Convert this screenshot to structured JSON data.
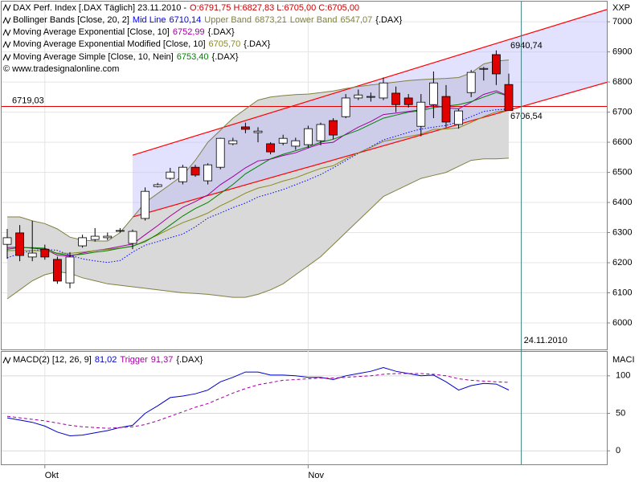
{
  "chart_data": {
    "type": "candlestick",
    "header": {
      "title": "DAX Perf. Index [.DAX  Täglich] 23.11.2010 -",
      "ohlc": "O:6791,75 H:6827,83 L:6705,00 C:6705,00",
      "ohlc_color": "#cc0000"
    },
    "copyright": "© www.tradesignalonline.com",
    "axis_label": "XXP",
    "categories": [
      null,
      null,
      null,
      "Okt",
      null,
      null,
      null,
      null,
      null,
      null,
      null,
      null,
      null,
      null,
      null,
      null,
      null,
      null,
      null,
      null,
      null,
      null,
      null,
      null,
      "Nov",
      null,
      null,
      null,
      null,
      null,
      null,
      null,
      null,
      null,
      null,
      null,
      null,
      null,
      null,
      null,
      null
    ],
    "ylim": [
      5912,
      7067
    ],
    "yticks": [
      6000,
      6100,
      6200,
      6300,
      6400,
      6500,
      6600,
      6700,
      6800,
      6900,
      7000
    ],
    "grid": true,
    "candles": {
      "up_color": "#ffffff",
      "down_color": "#e00000",
      "open": [
        6261,
        6299,
        6219,
        6245,
        6211,
        6133,
        6256,
        6277,
        6283,
        6305,
        6264,
        6347,
        6453,
        6480,
        6469,
        6517,
        6472,
        6517,
        6595,
        6651,
        6632,
        6595,
        6597,
        6587,
        6592,
        6605,
        6672,
        6685,
        6747,
        6752,
        6747,
        6763,
        6747,
        6653,
        6725,
        6752,
        6659,
        6765,
        6843,
        6891,
        6791.75
      ],
      "high": [
        6312,
        6325,
        6339,
        6260,
        6220,
        6235,
        6293,
        6315,
        6300,
        6315,
        6310,
        6450,
        6465,
        6515,
        6525,
        6525,
        6530,
        6615,
        6615,
        6665,
        6650,
        6600,
        6625,
        6615,
        6655,
        6665,
        6680,
        6760,
        6775,
        6765,
        6815,
        6785,
        6760,
        6760,
        6835,
        6790,
        6710,
        6840,
        6850,
        6905,
        6827.83
      ],
      "low": [
        6213,
        6205,
        6205,
        6210,
        6130,
        6115,
        6250,
        6270,
        6275,
        6300,
        6245,
        6340,
        6450,
        6475,
        6460,
        6485,
        6460,
        6510,
        6590,
        6630,
        6600,
        6560,
        6590,
        6575,
        6580,
        6590,
        6610,
        6680,
        6740,
        6735,
        6740,
        6700,
        6715,
        6620,
        6680,
        6650,
        6645,
        6750,
        6805,
        6790,
        6705
      ],
      "close": [
        6283,
        6224,
        6232,
        6219,
        6139,
        6219,
        6283,
        6288,
        6288,
        6307,
        6304,
        6437,
        6459,
        6501,
        6517,
        6491,
        6525,
        6613,
        6605,
        6643,
        6637,
        6568,
        6613,
        6605,
        6645,
        6659,
        6624,
        6747,
        6757,
        6752,
        6797,
        6725,
        6725,
        6733,
        6797,
        6667,
        6704,
        6832,
        6845,
        6827,
        6705
      ]
    },
    "bollinger": {
      "name": "Bollinger Bands [Close, 20, 2]",
      "suffix": "{.DAX}",
      "fill_color": "#d9d9d9",
      "mid": {
        "name": "Mid Line",
        "value_label": "6710,14",
        "color": "#0000ff",
        "values": [
          6216,
          6231,
          6240,
          6245,
          6241,
          6225,
          6213,
          6206,
          6201,
          6207,
          6235,
          6258,
          6270,
          6283,
          6295,
          6319,
          6348,
          6365,
          6383,
          6398,
          6418,
          6430,
          6443,
          6459,
          6475,
          6493,
          6515,
          6539,
          6563,
          6585,
          6608,
          6620,
          6633,
          6644,
          6650,
          6656,
          6668,
          6685,
          6702,
          6708,
          6710.14
        ]
      },
      "upper": {
        "name": "Upper Band",
        "value_label": "6873,21",
        "color": "#808040",
        "values": [
          6352,
          6352,
          6339,
          6330,
          6312,
          6285,
          6275,
          6272,
          6272,
          6300,
          6350,
          6400,
          6430,
          6460,
          6490,
          6540,
          6600,
          6640,
          6680,
          6710,
          6740,
          6750,
          6755,
          6758,
          6760,
          6765,
          6770,
          6778,
          6785,
          6790,
          6795,
          6800,
          6805,
          6808,
          6810,
          6812,
          6815,
          6830,
          6860,
          6870,
          6873.21
        ]
      },
      "lower": {
        "name": "Lower Band",
        "value_label": "6547,07",
        "color": "#808040",
        "values": [
          6080,
          6110,
          6140,
          6160,
          6170,
          6165,
          6150,
          6140,
          6130,
          6125,
          6120,
          6115,
          6110,
          6105,
          6100,
          6098,
          6095,
          6090,
          6085,
          6085,
          6095,
          6110,
          6130,
          6160,
          6190,
          6220,
          6260,
          6300,
          6340,
          6380,
          6420,
          6440,
          6460,
          6480,
          6490,
          6500,
          6520,
          6540,
          6545,
          6545,
          6547.07
        ]
      }
    },
    "series": [
      {
        "name": "Moving Average Exponential [Close, 10]",
        "value_label": "6752,99",
        "suffix": "{.DAX}",
        "color": "#a000a0",
        "values": [
          6250,
          6252,
          6248,
          6245,
          6225,
          6222,
          6232,
          6240,
          6246,
          6254,
          6262,
          6293,
          6323,
          6355,
          6384,
          6403,
          6425,
          6459,
          6486,
          6515,
          6538,
          6544,
          6556,
          6565,
          6581,
          6595,
          6600,
          6627,
          6650,
          6669,
          6692,
          6697,
          6702,
          6708,
          6724,
          6714,
          6711,
          6733,
          6759,
          6771,
          6752.99
        ]
      },
      {
        "name": "Moving Average Exponential Modified [Close, 10]",
        "value_label": "6705,70",
        "suffix": "{.DAX}",
        "color": "#8a8a20",
        "values": [
          6240,
          6241,
          6240,
          6239,
          6232,
          6231,
          6235,
          6240,
          6244,
          6249,
          6254,
          6273,
          6292,
          6313,
          6333,
          6348,
          6365,
          6389,
          6409,
          6431,
          6448,
          6457,
          6471,
          6482,
          6498,
          6513,
          6522,
          6545,
          6565,
          6583,
          6603,
          6611,
          6619,
          6627,
          6643,
          6644,
          6648,
          6666,
          6685,
          6701,
          6705.7
        ]
      },
      {
        "name": "Moving Average Simple [Close, 10, Nein]",
        "value_label": "6753,40",
        "suffix": "{.DAX}",
        "color": "#008000",
        "values": [
          6245,
          6250,
          6250,
          6248,
          6230,
          6225,
          6228,
          6235,
          6240,
          6248,
          6255,
          6270,
          6295,
          6325,
          6355,
          6380,
          6400,
          6430,
          6460,
          6495,
          6520,
          6545,
          6560,
          6572,
          6585,
          6600,
          6610,
          6625,
          6640,
          6660,
          6680,
          6690,
          6700,
          6705,
          6715,
          6720,
          6725,
          6735,
          6750,
          6765,
          6753.4
        ]
      }
    ],
    "hline": {
      "value": 6719.03,
      "label": "6719,03",
      "color": "#e00000"
    },
    "channel": {
      "color": "#ff0000",
      "fill": "rgba(190,190,255,0.45)",
      "upper": {
        "x": [
          10,
          40
        ],
        "values": [
          6557,
          6940.74
        ],
        "value_label": "6940,74"
      },
      "lower": {
        "x": [
          10,
          40
        ],
        "values": [
          6352,
          6706.54
        ],
        "value_label": "6706,54"
      }
    },
    "cursor": {
      "x": 41,
      "label": "24.11.2010"
    },
    "macd": {
      "type": "line",
      "title": "MACD(2) [12, 26, 9]",
      "suffix": "{.DAX}",
      "axis_label": "MACI",
      "ylim": [
        -18,
        133
      ],
      "yticks": [
        0,
        50,
        100
      ],
      "series": [
        {
          "value_label": "81,02",
          "color": "#0000cc",
          "dash": false,
          "values": [
            44,
            41,
            38,
            33,
            25,
            20,
            21,
            24,
            27,
            31,
            34,
            50,
            60,
            71,
            73,
            76,
            81,
            92,
            98,
            105,
            105,
            101,
            101,
            100,
            98,
            98,
            95,
            100,
            103,
            106,
            111,
            106,
            103,
            100,
            101,
            92,
            81,
            87,
            90,
            89,
            81.02
          ]
        },
        {
          "name": "Trigger",
          "value_label": "91,37",
          "color": "#a000a0",
          "dash": true,
          "values": [
            46,
            44,
            42,
            40,
            37,
            34,
            32,
            31,
            30,
            31,
            32,
            35,
            40,
            46,
            52,
            58,
            63,
            70,
            77,
            83,
            88,
            91,
            94,
            95,
            96,
            97,
            97,
            98,
            99,
            100,
            102,
            103,
            103,
            103,
            102,
            100,
            96,
            94,
            93,
            92,
            91.37
          ]
        }
      ]
    }
  }
}
